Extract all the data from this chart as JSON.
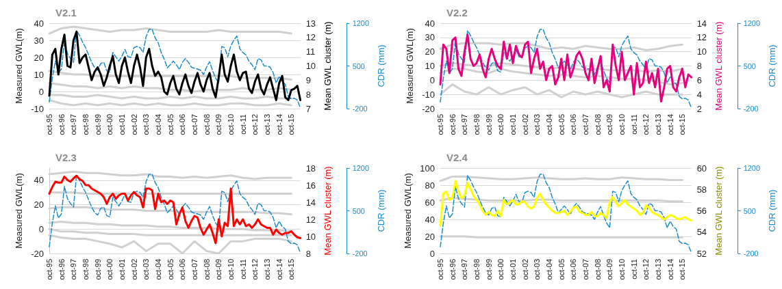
{
  "chart_data": [
    {
      "type": "line",
      "title": "V2.1",
      "ylabel": "Measured GWL(m)",
      "y2label": "Mean GWL cluster (m)",
      "y3label": "CDR (mm)",
      "grid": "y",
      "categories": [
        "oct-95",
        null,
        null,
        null,
        "oct-96",
        null,
        null,
        null,
        "oct-97",
        null,
        null,
        null,
        "oct-98",
        null,
        null,
        null,
        "oct-99",
        null,
        null,
        null,
        "oct-00",
        null,
        null,
        null,
        "oct-01",
        null,
        null,
        null,
        "oct-02",
        null,
        null,
        null,
        "oct-03",
        null,
        null,
        null,
        "oct-04",
        null,
        null,
        null,
        "oct-05",
        null,
        null,
        null,
        "oct-06",
        null,
        null,
        null,
        "oct-07",
        null,
        null,
        null,
        "oct-08",
        null,
        null,
        null,
        "oct-09",
        null,
        null,
        null,
        "oct-10",
        null,
        null,
        null,
        "oct-11",
        null,
        null,
        null,
        "oct-12",
        null,
        null,
        null,
        "oct-13",
        null,
        null,
        null,
        "oct-14",
        null,
        null,
        null,
        "oct-15",
        null,
        null,
        null
      ],
      "ylim": [
        -10,
        40
      ],
      "yticks": [
        -10,
        0,
        10,
        20,
        30,
        40
      ],
      "y2lim": [
        7,
        13
      ],
      "y2ticks": [
        7,
        8,
        9,
        10,
        11,
        12,
        13
      ],
      "y3lim": [
        -200,
        1200
      ],
      "y3ticks": [
        -200,
        500,
        1200
      ],
      "series": [
        {
          "axis": "y",
          "color": "#d0d0d0",
          "x": [
            "oct-95",
            "oct-96",
            "oct-97",
            "oct-98",
            "oct-99",
            "oct-00",
            "oct-01",
            "oct-02",
            "oct-03",
            "oct-04",
            "oct-05",
            "oct-06",
            "oct-07",
            "oct-08",
            "oct-09",
            "oct-10",
            "oct-11",
            "oct-12",
            "oct-13",
            "oct-14",
            "oct-15"
          ],
          "values": [
            34,
            37,
            38,
            37,
            36,
            35,
            36,
            36,
            37,
            36,
            35,
            35,
            35,
            35,
            36,
            35,
            35,
            35,
            35,
            35,
            34
          ]
        },
        {
          "axis": "y",
          "color": "#d0d0d0",
          "x": [
            "oct-95",
            "oct-96",
            "oct-97",
            "oct-98",
            "oct-99",
            "oct-00",
            "oct-01",
            "oct-02",
            "oct-03",
            "oct-04",
            "oct-05",
            "oct-06",
            "oct-07",
            "oct-08",
            "oct-09",
            "oct-10",
            "oct-11",
            "oct-12",
            "oct-13",
            "oct-14",
            "oct-15"
          ],
          "values": [
            12,
            11,
            10,
            10,
            9,
            9,
            9,
            9,
            9,
            9,
            9,
            9,
            9,
            9,
            9,
            9,
            8,
            8,
            8,
            8,
            7
          ]
        },
        {
          "axis": "y",
          "color": "#d0d0d0",
          "x": [
            "oct-95",
            "oct-96",
            "oct-97",
            "oct-98",
            "oct-99",
            "oct-00",
            "oct-01",
            "oct-02",
            "oct-03",
            "oct-04",
            "oct-05",
            "oct-06",
            "oct-07",
            "oct-08",
            "oct-09",
            "oct-10",
            "oct-11",
            "oct-12",
            "oct-13",
            "oct-14",
            "oct-15"
          ],
          "values": [
            5,
            4,
            3,
            3,
            2,
            3,
            2,
            3,
            2,
            2,
            1,
            1,
            0,
            1,
            1,
            1,
            2,
            1,
            1,
            2,
            1
          ]
        },
        {
          "axis": "y",
          "color": "#d0d0d0",
          "x": [
            "oct-95",
            "oct-96",
            "oct-97",
            "oct-98",
            "oct-99",
            "oct-00",
            "oct-01",
            "oct-02",
            "oct-03",
            "oct-04",
            "oct-05",
            "oct-06",
            "oct-07",
            "oct-08",
            "oct-09",
            "oct-10",
            "oct-11",
            "oct-12",
            "oct-13",
            "oct-14",
            "oct-15"
          ],
          "values": [
            -2,
            -2,
            -3,
            -3,
            -2,
            -3,
            -4,
            -3,
            -4,
            -4,
            -3,
            -4,
            -3,
            -4,
            -4,
            -3,
            -4,
            -4,
            -3,
            -4,
            -4
          ]
        },
        {
          "axis": "y",
          "color": "#d0d0d0",
          "x": [
            "oct-95",
            "oct-96",
            "oct-97",
            "oct-98",
            "oct-99",
            "oct-00",
            "oct-01",
            "oct-02",
            "oct-03",
            "oct-04",
            "oct-05",
            "oct-06",
            "oct-07",
            "oct-08",
            "oct-09",
            "oct-10",
            "oct-11",
            "oct-12",
            "oct-13",
            "oct-14",
            "oct-15"
          ],
          "values": [
            -5,
            -7,
            -8,
            -7,
            -8,
            -7,
            -8,
            -7,
            -8,
            -7,
            -8,
            -8,
            -7,
            -8,
            -8,
            -7,
            -7,
            -8,
            -8,
            -7,
            -8
          ]
        },
        {
          "axis": "y3",
          "color": "#1b8ccc",
          "line_style": "dashed",
          "values": [
            -90,
            300,
            580,
            380,
            450,
            900,
            700,
            620,
            560,
            1080,
            1000,
            890,
            800,
            680,
            560,
            470,
            430,
            540,
            560,
            420,
            400,
            720,
            650,
            580,
            660,
            770,
            650,
            640,
            800,
            820,
            800,
            720,
            980,
            1100,
            1100,
            960,
            880,
            720,
            610,
            470,
            520,
            580,
            520,
            440,
            560,
            620,
            560,
            480,
            460,
            450,
            430,
            360,
            480,
            570,
            420,
            300,
            220,
            820,
            800,
            650,
            830,
            920,
            990,
            780,
            720,
            680,
            580,
            520,
            440,
            620,
            600,
            500,
            500,
            480,
            390,
            220,
            330,
            240,
            200,
            0,
            -40,
            -30,
            -60,
            -190
          ]
        },
        {
          "axis": "y2",
          "color": "#000000",
          "values": [
            7.9,
            10.8,
            11.2,
            9.4,
            11.2,
            12.2,
            10.0,
            9.9,
            11.8,
            12.4,
            10.2,
            10.6,
            10.8,
            9.9,
            9.0,
            9.6,
            9.9,
            9.4,
            8.6,
            9.2,
            10.0,
            10.7,
            9.4,
            8.8,
            10.0,
            10.6,
            9.6,
            8.8,
            10.0,
            10.8,
            9.9,
            8.6,
            10.6,
            11.2,
            10.0,
            9.3,
            9.6,
            9.2,
            8.2,
            8.0,
            8.8,
            9.3,
            8.4,
            8.0,
            8.8,
            9.4,
            8.6,
            8.1,
            8.9,
            9.5,
            8.7,
            8.2,
            9.0,
            9.5,
            8.4,
            7.8,
            9.2,
            10.8,
            9.4,
            8.9,
            10.0,
            10.8,
            9.6,
            9.0,
            9.5,
            9.6,
            8.4,
            8.1,
            8.9,
            9.4,
            8.4,
            8.0,
            8.7,
            9.2,
            8.4,
            7.6,
            8.8,
            9.3,
            7.8,
            7.6,
            8.3,
            8.4,
            8.6,
            7.6
          ]
        }
      ]
    },
    {
      "type": "line",
      "title": "V2.2",
      "ylabel": "Measured GWL(m)",
      "y2label": "Mean GWL cluster (m)",
      "y3label": "CDR (mm)",
      "grid": "y",
      "categories": [
        "oct-95",
        null,
        null,
        null,
        "oct-96",
        null,
        null,
        null,
        "oct-97",
        null,
        null,
        null,
        "oct-98",
        null,
        null,
        null,
        "oct-99",
        null,
        null,
        null,
        "oct-00",
        null,
        null,
        null,
        "oct-01",
        null,
        null,
        null,
        "oct-02",
        null,
        null,
        null,
        "oct-03",
        null,
        null,
        null,
        "oct-04",
        null,
        null,
        null,
        "oct-05",
        null,
        null,
        null,
        "oct-06",
        null,
        null,
        null,
        "oct-07",
        null,
        null,
        null,
        "oct-08",
        null,
        null,
        null,
        "oct-09",
        null,
        null,
        null,
        "oct-10",
        null,
        null,
        null,
        "oct-11",
        null,
        null,
        null,
        "oct-12",
        null,
        null,
        null,
        "oct-13",
        null,
        null,
        null,
        "oct-14",
        null,
        null,
        null,
        "oct-15",
        null,
        null,
        null
      ],
      "ylim": [
        -20,
        40
      ],
      "yticks": [
        -20,
        -10,
        0,
        10,
        20,
        30,
        40
      ],
      "y2lim": [
        2,
        14
      ],
      "y2ticks": [
        2,
        4,
        6,
        8,
        10,
        12,
        14
      ],
      "y3lim": [
        -200,
        1200
      ],
      "y3ticks": [
        -200,
        500,
        1200
      ],
      "series": [
        {
          "axis": "y",
          "color": "#d0d0d0",
          "x": [
            "oct-95",
            "oct-96",
            "oct-97",
            "oct-98",
            "oct-99",
            "oct-00",
            "oct-01",
            "oct-02",
            "oct-03",
            "oct-04",
            "oct-05",
            "oct-06",
            "oct-07",
            "oct-08",
            "oct-09",
            "oct-10",
            "oct-11",
            "oct-12",
            "oct-13",
            "oct-14",
            "oct-15"
          ],
          "values": [
            22,
            25,
            26,
            26,
            26,
            25,
            26,
            26,
            24,
            22,
            23,
            22,
            24,
            23,
            22,
            22,
            23,
            21,
            22,
            24,
            25
          ]
        },
        {
          "axis": "y",
          "color": "#d0d0d0",
          "x": [
            "oct-95",
            "oct-96",
            "oct-97",
            "oct-98",
            "oct-99",
            "oct-00",
            "oct-01",
            "oct-02",
            "oct-03",
            "oct-04",
            "oct-05",
            "oct-06",
            "oct-07",
            "oct-08",
            "oct-09",
            "oct-10",
            "oct-11",
            "oct-12",
            "oct-13",
            "oct-14",
            "oct-15"
          ],
          "values": [
            10,
            12,
            11,
            10,
            10,
            12,
            11,
            10,
            9,
            8,
            9,
            8,
            7,
            8,
            7,
            7,
            7,
            6,
            7,
            6,
            8
          ]
        },
        {
          "axis": "y",
          "color": "#d0d0d0",
          "x": [
            "oct-95",
            "oct-96",
            "oct-97",
            "oct-98",
            "oct-99",
            "oct-00",
            "oct-01",
            "oct-02",
            "oct-03",
            "oct-04",
            "oct-05",
            "oct-06",
            "oct-07",
            "oct-08",
            "oct-09",
            "oct-10",
            "oct-11",
            "oct-12",
            "oct-13",
            "oct-14",
            "oct-15"
          ],
          "values": [
            5,
            8,
            8,
            6,
            5,
            8,
            6,
            5,
            4,
            3,
            4,
            3,
            2,
            3,
            2,
            1,
            1,
            0,
            -1,
            -3,
            -2
          ]
        },
        {
          "axis": "y",
          "color": "#d0d0d0",
          "x": [
            "oct-95",
            "oct-96",
            "oct-97",
            "oct-98",
            "oct-99",
            "oct-00",
            "oct-01",
            "oct-02",
            "oct-03",
            "oct-04",
            "oct-05",
            "oct-06",
            "oct-07",
            "oct-08",
            "oct-09",
            "oct-10",
            "oct-11",
            "oct-12",
            "oct-13",
            "oct-14",
            "oct-15"
          ],
          "values": [
            -10,
            -3,
            -8,
            -10,
            -5,
            -10,
            -7,
            -5,
            -10,
            -7,
            -12,
            -8,
            -10,
            -8,
            -10,
            -12,
            -10,
            -8,
            -10,
            -10,
            -10
          ]
        },
        {
          "axis": "y3",
          "color": "#1b8ccc",
          "line_style": "dashed",
          "values": [
            -90,
            300,
            580,
            380,
            450,
            900,
            700,
            620,
            560,
            1080,
            1000,
            890,
            800,
            680,
            560,
            470,
            430,
            540,
            560,
            420,
            400,
            720,
            650,
            580,
            660,
            770,
            650,
            640,
            800,
            820,
            800,
            720,
            980,
            1100,
            1100,
            960,
            880,
            720,
            610,
            470,
            520,
            580,
            520,
            440,
            560,
            620,
            560,
            480,
            460,
            450,
            430,
            360,
            480,
            570,
            420,
            300,
            220,
            820,
            800,
            650,
            830,
            920,
            990,
            780,
            720,
            680,
            580,
            520,
            440,
            620,
            600,
            500,
            500,
            480,
            390,
            220,
            330,
            240,
            200,
            0,
            -40,
            -30,
            -60,
            -190
          ]
        },
        {
          "axis": "y2",
          "color": "#e5007d",
          "values": [
            5.4,
            11,
            10.4,
            7,
            11.6,
            12,
            7.6,
            6.6,
            10,
            12.4,
            9,
            8,
            8.4,
            9.6,
            7.6,
            6.4,
            9,
            10.4,
            9,
            8,
            7.6,
            11.4,
            9,
            11,
            8.4,
            10.8,
            9.6,
            9.2,
            11,
            11.4,
            7,
            9,
            10.4,
            7.6,
            8.6,
            6,
            7.6,
            8,
            5.4,
            6.4,
            9,
            6,
            9.6,
            6.4,
            7.6,
            9.4,
            10,
            9,
            7,
            6,
            9,
            5.6,
            7.6,
            9.4,
            5,
            6,
            4.4,
            11,
            8,
            6,
            10,
            6,
            7,
            8,
            4,
            8.4,
            5,
            5.6,
            8.6,
            5.6,
            7,
            5,
            7.6,
            3,
            5,
            7.6,
            8,
            5,
            4.4,
            6.4,
            7.6,
            5,
            6.8,
            6.4
          ]
        }
      ]
    },
    {
      "type": "line",
      "title": "V2.3",
      "ylabel": "Measured GWL(m)",
      "y2label": "Mean GWL cluster (m)",
      "y3label": "CDR (mm)",
      "grid": "y",
      "categories": [
        "oct-95",
        null,
        null,
        null,
        "oct-96",
        null,
        null,
        null,
        "oct-97",
        null,
        null,
        null,
        "oct-98",
        null,
        null,
        null,
        "oct-99",
        null,
        null,
        null,
        "oct-00",
        null,
        null,
        null,
        "oct-01",
        null,
        null,
        null,
        "oct-02",
        null,
        null,
        null,
        "oct-03",
        null,
        null,
        null,
        "oct-04",
        null,
        null,
        null,
        "oct-05",
        null,
        null,
        null,
        "oct-06",
        null,
        null,
        null,
        "oct-07",
        null,
        null,
        null,
        "oct-08",
        null,
        null,
        null,
        "oct-09",
        null,
        null,
        null,
        "oct-10",
        null,
        null,
        null,
        "oct-11",
        null,
        null,
        null,
        "oct-12",
        null,
        null,
        null,
        "oct-13",
        null,
        null,
        null,
        "oct-14",
        null,
        null,
        null,
        "oct-15",
        null,
        null,
        null
      ],
      "ylim": [
        -20,
        50
      ],
      "yticks": [
        -20,
        0,
        20,
        40
      ],
      "y2lim": [
        8,
        18
      ],
      "y2ticks": [
        8,
        10,
        12,
        14,
        16,
        18
      ],
      "y3lim": [
        -200,
        1200
      ],
      "y3ticks": [
        -200,
        500,
        1200
      ],
      "series": [
        {
          "axis": "y",
          "color": "#d0d0d0",
          "x": [
            "oct-95",
            "oct-96",
            "oct-97",
            "oct-98",
            "oct-99",
            "oct-00",
            "oct-01",
            "oct-02",
            "oct-03",
            "oct-04",
            "oct-05",
            "oct-06",
            "oct-07",
            "oct-08",
            "oct-09",
            "oct-10",
            "oct-11",
            "oct-12",
            "oct-13",
            "oct-14",
            "oct-15"
          ],
          "values": [
            45,
            46,
            47,
            46,
            46,
            45,
            44,
            44,
            45,
            43,
            43,
            42,
            43,
            42,
            43,
            44,
            42,
            41,
            42,
            42,
            42
          ]
        },
        {
          "axis": "y",
          "color": "#d0d0d0",
          "x": [
            "oct-95",
            "oct-96",
            "oct-97",
            "oct-98",
            "oct-99",
            "oct-00",
            "oct-01",
            "oct-02",
            "oct-03",
            "oct-04",
            "oct-05",
            "oct-06",
            "oct-07",
            "oct-08",
            "oct-09",
            "oct-10",
            "oct-11",
            "oct-12",
            "oct-13",
            "oct-14",
            "oct-15"
          ],
          "values": [
            30,
            30,
            30,
            29,
            29,
            29,
            29,
            29,
            29,
            29,
            29,
            29,
            29,
            29,
            29,
            29,
            29,
            29,
            29,
            29,
            29
          ]
        },
        {
          "axis": "y",
          "color": "#d0d0d0",
          "x": [
            "oct-95",
            "oct-96",
            "oct-97",
            "oct-98",
            "oct-99",
            "oct-00",
            "oct-01",
            "oct-02",
            "oct-03",
            "oct-04",
            "oct-05",
            "oct-06",
            "oct-07",
            "oct-08",
            "oct-09",
            "oct-10",
            "oct-11",
            "oct-12",
            "oct-13",
            "oct-14",
            "oct-15"
          ],
          "values": [
            17,
            18,
            18,
            18,
            17,
            16,
            16,
            16,
            15,
            15,
            15,
            14,
            14,
            14,
            14,
            14,
            14,
            14,
            13,
            13,
            12
          ]
        },
        {
          "axis": "y",
          "color": "#d0d0d0",
          "x": [
            "oct-95",
            "oct-96",
            "oct-97",
            "oct-98",
            "oct-99",
            "oct-00",
            "oct-01",
            "oct-02",
            "oct-03",
            "oct-04",
            "oct-05",
            "oct-06",
            "oct-07",
            "oct-08",
            "oct-09",
            "oct-10",
            "oct-11",
            "oct-12",
            "oct-13",
            "oct-14",
            "oct-15"
          ],
          "values": [
            5,
            6,
            5,
            5,
            4,
            4,
            3,
            3,
            3,
            2,
            2,
            1,
            1,
            1,
            0,
            0,
            0,
            -1,
            -1,
            -1,
            -2
          ]
        },
        {
          "axis": "y",
          "color": "#d0d0d0",
          "x": [
            "oct-95",
            "oct-96",
            "oct-97",
            "oct-98",
            "oct-99",
            "oct-00",
            "oct-01",
            "oct-02",
            "oct-03",
            "oct-04",
            "oct-05",
            "oct-06",
            "oct-07",
            "oct-08",
            "oct-09",
            "oct-10",
            "oct-11",
            "oct-12",
            "oct-13",
            "oct-14",
            "oct-15"
          ],
          "values": [
            0,
            -2,
            -2,
            -3,
            -3,
            -4,
            -4,
            -4,
            -5,
            -5,
            -5,
            -5,
            -5,
            -5,
            -5,
            -5,
            -5,
            -5,
            -5,
            -5,
            -5
          ]
        },
        {
          "axis": "y",
          "color": "#d0d0d0",
          "x": [
            "oct-95",
            "oct-96",
            "oct-97",
            "oct-98",
            "oct-99",
            "oct-00",
            "oct-01",
            "oct-02",
            "oct-03",
            "oct-04",
            "oct-05",
            "oct-06",
            "oct-07",
            "oct-08",
            "oct-09",
            "oct-10",
            "oct-11",
            "oct-12",
            "oct-13",
            "oct-14",
            "oct-15"
          ],
          "values": [
            -5,
            -7,
            -8,
            -8,
            -10,
            -12,
            -15,
            -10,
            -18,
            -12,
            -12,
            -20,
            -10,
            -18,
            -20,
            -10,
            -10,
            -8,
            -8,
            -8,
            -10
          ]
        },
        {
          "axis": "y3",
          "color": "#1b8ccc",
          "line_style": "dashed",
          "values": [
            -90,
            300,
            580,
            380,
            450,
            900,
            700,
            620,
            560,
            1080,
            1000,
            890,
            800,
            680,
            560,
            470,
            430,
            540,
            560,
            420,
            400,
            720,
            650,
            580,
            660,
            770,
            650,
            640,
            800,
            820,
            800,
            720,
            980,
            1100,
            1100,
            960,
            880,
            720,
            610,
            470,
            520,
            580,
            520,
            440,
            560,
            620,
            560,
            480,
            460,
            450,
            430,
            360,
            480,
            570,
            420,
            300,
            220,
            820,
            800,
            650,
            830,
            920,
            990,
            780,
            720,
            680,
            580,
            520,
            440,
            620,
            600,
            500,
            500,
            480,
            390,
            220,
            330,
            240,
            200,
            0,
            -40,
            -30,
            -60,
            -190
          ]
        },
        {
          "axis": "y2",
          "color": "#ff0000",
          "values": [
            15,
            15.8,
            16.4,
            16.3,
            16.3,
            17,
            16.6,
            16.4,
            16.8,
            17.1,
            16.7,
            16.5,
            16,
            16,
            15.6,
            15.4,
            15.2,
            15,
            14.6,
            13.8,
            14.6,
            15,
            14.4,
            14.8,
            15,
            15,
            14.2,
            14.8,
            15.2,
            14.8,
            14.6,
            13.4,
            15.6,
            15.6,
            15.4,
            13.2,
            15,
            14,
            14.2,
            13.8,
            14.2,
            14,
            11.4,
            12.6,
            13.4,
            11.8,
            11,
            11.8,
            12.4,
            12.2,
            11,
            10.2,
            10.8,
            11.4,
            10.4,
            9.2,
            12,
            10,
            11.6,
            11.2,
            15.6,
            11.2,
            12,
            11.4,
            12,
            11.2,
            11.4,
            11,
            11.4,
            12,
            11.4,
            11.2,
            11,
            11,
            10.2,
            10.8,
            10.4,
            10.2,
            10.4,
            10.4,
            10.6,
            10.2,
            9.9,
            9.8
          ]
        }
      ]
    },
    {
      "type": "line",
      "title": "V2.4",
      "ylabel": "Measured GWL(m)",
      "y2label": "Mean GWL cluster (m)",
      "y3label": "CDR (mm)",
      "grid": "y",
      "categories": [
        "oct-95",
        null,
        null,
        null,
        "oct-96",
        null,
        null,
        null,
        "oct-97",
        null,
        null,
        null,
        "oct-98",
        null,
        null,
        null,
        "oct-99",
        null,
        null,
        null,
        "oct-00",
        null,
        null,
        null,
        "oct-01",
        null,
        null,
        null,
        "oct-02",
        null,
        null,
        null,
        "oct-03",
        null,
        null,
        null,
        "oct-04",
        null,
        null,
        null,
        "oct-05",
        null,
        null,
        null,
        "oct-06",
        null,
        null,
        null,
        "oct-07",
        null,
        null,
        null,
        "oct-08",
        null,
        null,
        null,
        "oct-09",
        null,
        null,
        null,
        "oct-10",
        null,
        null,
        null,
        "oct-11",
        null,
        null,
        null,
        "oct-12",
        null,
        null,
        null,
        "oct-13",
        null,
        null,
        null,
        "oct-14",
        null,
        null,
        null,
        "oct-15",
        null,
        null,
        null
      ],
      "ylim": [
        0,
        100
      ],
      "yticks": [
        0,
        20,
        40,
        60,
        80,
        100
      ],
      "y2lim": [
        52,
        60
      ],
      "y2ticks": [
        52,
        54,
        56,
        58,
        60
      ],
      "y3lim": [
        -200,
        1200
      ],
      "y3ticks": [
        -200,
        500,
        1200
      ],
      "series": [
        {
          "axis": "y",
          "color": "#d0d0d0",
          "x": [
            "oct-95",
            "oct-96",
            "oct-97",
            "oct-98",
            "oct-99",
            "oct-00",
            "oct-01",
            "oct-02",
            "oct-03",
            "oct-04",
            "oct-05",
            "oct-06",
            "oct-07",
            "oct-08",
            "oct-09",
            "oct-10",
            "oct-11",
            "oct-12",
            "oct-13",
            "oct-14",
            "oct-15"
          ],
          "values": [
            85,
            90,
            90,
            89,
            88,
            87,
            87,
            88,
            89,
            88,
            87,
            87,
            88,
            87,
            87,
            89,
            88,
            87,
            87,
            86,
            86
          ]
        },
        {
          "axis": "y",
          "color": "#d0d0d0",
          "x": [
            "oct-95",
            "oct-96",
            "oct-97",
            "oct-98",
            "oct-99",
            "oct-00",
            "oct-01",
            "oct-02",
            "oct-03",
            "oct-04",
            "oct-05",
            "oct-06",
            "oct-07",
            "oct-08",
            "oct-09",
            "oct-10",
            "oct-11",
            "oct-12",
            "oct-13",
            "oct-14",
            "oct-15"
          ],
          "values": [
            62,
            65,
            64,
            63,
            62,
            62,
            62,
            62,
            63,
            63,
            62,
            62,
            62,
            62,
            62,
            62,
            62,
            62,
            62,
            61,
            61
          ]
        },
        {
          "axis": "y",
          "color": "#d0d0d0",
          "x": [
            "oct-95",
            "oct-96",
            "oct-97",
            "oct-98",
            "oct-99",
            "oct-00",
            "oct-01",
            "oct-02",
            "oct-03",
            "oct-04",
            "oct-05",
            "oct-06",
            "oct-07",
            "oct-08",
            "oct-09",
            "oct-10",
            "oct-11",
            "oct-12",
            "oct-13",
            "oct-14",
            "oct-15"
          ],
          "values": [
            20,
            20,
            20,
            19,
            19,
            19,
            19,
            19,
            19,
            19,
            19,
            19,
            19,
            19,
            19,
            19,
            19,
            19,
            19,
            19,
            19
          ]
        },
        {
          "axis": "y3",
          "color": "#1b8ccc",
          "line_style": "dashed",
          "values": [
            -90,
            300,
            580,
            380,
            450,
            900,
            700,
            620,
            560,
            1080,
            1000,
            890,
            800,
            680,
            560,
            470,
            430,
            540,
            560,
            420,
            400,
            720,
            650,
            580,
            660,
            770,
            650,
            640,
            800,
            820,
            800,
            720,
            980,
            1100,
            1100,
            960,
            880,
            720,
            610,
            470,
            520,
            580,
            520,
            440,
            560,
            620,
            560,
            480,
            460,
            450,
            430,
            360,
            480,
            570,
            420,
            300,
            220,
            820,
            800,
            650,
            830,
            920,
            990,
            780,
            720,
            680,
            580,
            520,
            440,
            620,
            600,
            500,
            500,
            480,
            390,
            220,
            330,
            240,
            200,
            0,
            -40,
            -30,
            -60,
            -190
          ]
        },
        {
          "axis": "y2",
          "color": "#ffff00",
          "values": [
            54.6,
            57.6,
            57.8,
            57,
            57.2,
            58.8,
            57.8,
            57.2,
            57.4,
            58.6,
            58,
            57.4,
            57,
            56.6,
            56,
            55.6,
            55.9,
            55.6,
            55.5,
            56,
            55.5,
            57,
            56.6,
            56.8,
            57,
            56.6,
            56.6,
            56.9,
            56.8,
            56.4,
            56.2,
            56.4,
            57.2,
            57.6,
            57,
            56.6,
            56.3,
            56,
            55.8,
            55.8,
            55.9,
            56,
            55.6,
            55.9,
            56.3,
            56.4,
            55.9,
            55.8,
            55.6,
            55.6,
            55.9,
            55.5,
            55.5,
            55.8,
            55.6,
            55.3,
            56.8,
            57.3,
            56.8,
            56.4,
            56.7,
            57,
            56.6,
            56.4,
            56.2,
            56,
            55.6,
            55.8,
            56.5,
            56.3,
            55.9,
            55.7,
            55.6,
            55.4,
            55.2,
            55.4,
            55.6,
            55.5,
            55.3,
            55.2,
            55.3,
            55.4,
            55.2,
            55.1
          ]
        }
      ]
    }
  ]
}
